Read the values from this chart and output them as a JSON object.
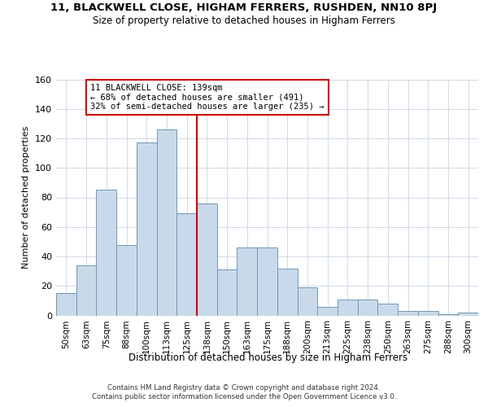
{
  "title1": "11, BLACKWELL CLOSE, HIGHAM FERRERS, RUSHDEN, NN10 8PJ",
  "title2": "Size of property relative to detached houses in Higham Ferrers",
  "xlabel": "Distribution of detached houses by size in Higham Ferrers",
  "ylabel": "Number of detached properties",
  "categories": [
    "50sqm",
    "63sqm",
    "75sqm",
    "88sqm",
    "100sqm",
    "113sqm",
    "125sqm",
    "138sqm",
    "150sqm",
    "163sqm",
    "175sqm",
    "188sqm",
    "200sqm",
    "213sqm",
    "225sqm",
    "238sqm",
    "250sqm",
    "263sqm",
    "275sqm",
    "288sqm",
    "300sqm"
  ],
  "bar_values": [
    15,
    34,
    85,
    48,
    117,
    126,
    69,
    76,
    31,
    46,
    46,
    32,
    19,
    6,
    11,
    11,
    8,
    3,
    3,
    1,
    2
  ],
  "bar_color": "#c9d9ea",
  "bar_edge_color": "#7097b8",
  "property_line_label": "11 BLACKWELL CLOSE: 139sqm",
  "annotation_line1": "← 68% of detached houses are smaller (491)",
  "annotation_line2": "32% of semi-detached houses are larger (235) →",
  "vline_color": "#cc0000",
  "box_color": "#cc0000",
  "ylim": [
    0,
    160
  ],
  "yticks": [
    0,
    20,
    40,
    60,
    80,
    100,
    120,
    140,
    160
  ],
  "footer1": "Contains HM Land Registry data © Crown copyright and database right 2024.",
  "footer2": "Contains public sector information licensed under the Open Government Licence v3.0.",
  "bg_color": "#ffffff",
  "grid_color": "#c8d4e4"
}
